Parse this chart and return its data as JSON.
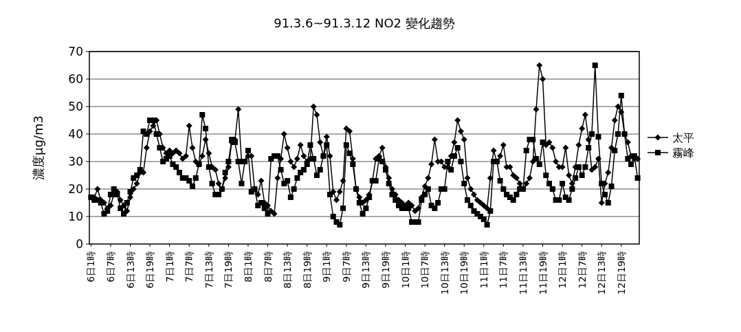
{
  "chart_data": {
    "type": "line",
    "title": "91.3.6~91.3.12 NO2 變化趨勢",
    "ylabel": "濃度μg/m3",
    "categories": [
      "6日1時",
      null,
      null,
      null,
      null,
      null,
      "6日7時",
      null,
      null,
      null,
      null,
      null,
      "6日13時",
      null,
      null,
      null,
      null,
      null,
      "6日19時",
      null,
      null,
      null,
      null,
      null,
      "7日1時",
      null,
      null,
      null,
      null,
      null,
      "7日7時",
      null,
      null,
      null,
      null,
      null,
      "7日13時",
      null,
      null,
      null,
      null,
      null,
      "7日19時",
      null,
      null,
      null,
      null,
      null,
      "8日1時",
      null,
      null,
      null,
      null,
      null,
      "8日7時",
      null,
      null,
      null,
      null,
      null,
      "8日13時",
      null,
      null,
      null,
      null,
      null,
      "8日19時",
      null,
      null,
      null,
      null,
      null,
      "9日1時",
      null,
      null,
      null,
      null,
      null,
      "9日7時",
      null,
      null,
      null,
      null,
      null,
      "9日13時",
      null,
      null,
      null,
      null,
      null,
      "9日19時",
      null,
      null,
      null,
      null,
      null,
      "10日1時",
      null,
      null,
      null,
      null,
      null,
      "10日7時",
      null,
      null,
      null,
      null,
      null,
      "10日13時",
      null,
      null,
      null,
      null,
      null,
      "10日19時",
      null,
      null,
      null,
      null,
      null,
      "11日1時",
      null,
      null,
      null,
      null,
      null,
      "11日7時",
      null,
      null,
      null,
      null,
      null,
      "11日13時",
      null,
      null,
      null,
      null,
      null,
      "11日19時",
      null,
      null,
      null,
      null,
      null,
      "12日1時",
      null,
      null,
      null,
      null,
      null,
      "12日7時",
      null,
      null,
      null,
      null,
      null,
      "12日13時",
      null,
      null,
      null,
      null,
      null,
      "12日19時",
      null,
      null,
      null,
      null,
      null
    ],
    "series": [
      {
        "name": "太平",
        "color": "#000000",
        "marker": "diamond",
        "values": [
          17,
          17,
          20,
          16,
          15,
          13,
          14,
          18,
          19,
          16,
          14,
          12,
          17,
          20,
          22,
          26,
          26,
          35,
          41,
          43,
          45,
          40,
          35,
          33,
          34,
          33,
          34,
          33,
          31,
          32,
          43,
          35,
          30,
          29,
          32,
          38,
          33,
          28,
          27,
          22,
          20,
          24,
          28,
          37,
          38,
          49,
          30,
          30,
          32,
          32,
          20,
          18,
          23,
          15,
          14,
          12,
          11,
          24,
          31,
          40,
          35,
          30,
          28,
          31,
          36,
          32,
          30,
          31,
          50,
          47,
          37,
          32,
          39,
          32,
          19,
          16,
          19,
          23,
          42,
          41,
          31,
          20,
          17,
          15,
          16,
          18,
          23,
          31,
          32,
          35,
          28,
          24,
          20,
          18,
          16,
          15,
          14,
          15,
          14,
          12,
          13,
          17,
          21,
          24,
          29,
          38,
          30,
          30,
          28,
          28,
          32,
          37,
          45,
          41,
          38,
          24,
          20,
          18,
          16,
          15,
          14,
          13,
          24,
          34,
          30,
          32,
          36,
          28,
          28,
          25,
          24,
          22,
          20,
          22,
          24,
          30,
          49,
          65,
          60,
          36,
          37,
          35,
          30,
          28,
          28,
          35,
          25,
          22,
          28,
          36,
          42,
          47,
          38,
          27,
          28,
          31,
          15,
          22,
          26,
          35,
          45,
          50,
          48,
          40,
          37,
          32,
          31,
          31
        ]
      },
      {
        "name": "霧峰",
        "color": "#000000",
        "marker": "square",
        "values": [
          17,
          16,
          16,
          15,
          11,
          12,
          18,
          20,
          18,
          13,
          11,
          15,
          19,
          24,
          25,
          27,
          41,
          40,
          45,
          45,
          40,
          35,
          30,
          31,
          32,
          29,
          28,
          26,
          24,
          24,
          23,
          21,
          24,
          29,
          47,
          42,
          28,
          22,
          18,
          18,
          20,
          26,
          30,
          38,
          37,
          30,
          22,
          30,
          34,
          19,
          20,
          14,
          15,
          13,
          11,
          31,
          32,
          32,
          27,
          22,
          23,
          17,
          20,
          24,
          26,
          27,
          29,
          36,
          31,
          25,
          27,
          32,
          36,
          18,
          10,
          8,
          7,
          13,
          36,
          33,
          29,
          20,
          15,
          11,
          13,
          17,
          23,
          23,
          31,
          30,
          27,
          22,
          18,
          16,
          14,
          13,
          13,
          13,
          8,
          8,
          8,
          16,
          18,
          20,
          14,
          13,
          15,
          20,
          20,
          30,
          27,
          32,
          35,
          30,
          22,
          16,
          14,
          12,
          11,
          10,
          9,
          7,
          12,
          30,
          30,
          23,
          20,
          18,
          17,
          16,
          18,
          20,
          20,
          34,
          38,
          38,
          31,
          29,
          37,
          25,
          22,
          20,
          16,
          16,
          22,
          17,
          16,
          20,
          24,
          28,
          25,
          28,
          35,
          40,
          65,
          39,
          22,
          18,
          15,
          21,
          34,
          40,
          54,
          40,
          31,
          29,
          32,
          24
        ]
      }
    ],
    "ylim": [
      0,
      70
    ],
    "yticks": [
      0,
      10,
      20,
      30,
      40,
      50,
      60,
      70
    ],
    "grid": "y",
    "legend": "right",
    "line_style": "solid"
  }
}
